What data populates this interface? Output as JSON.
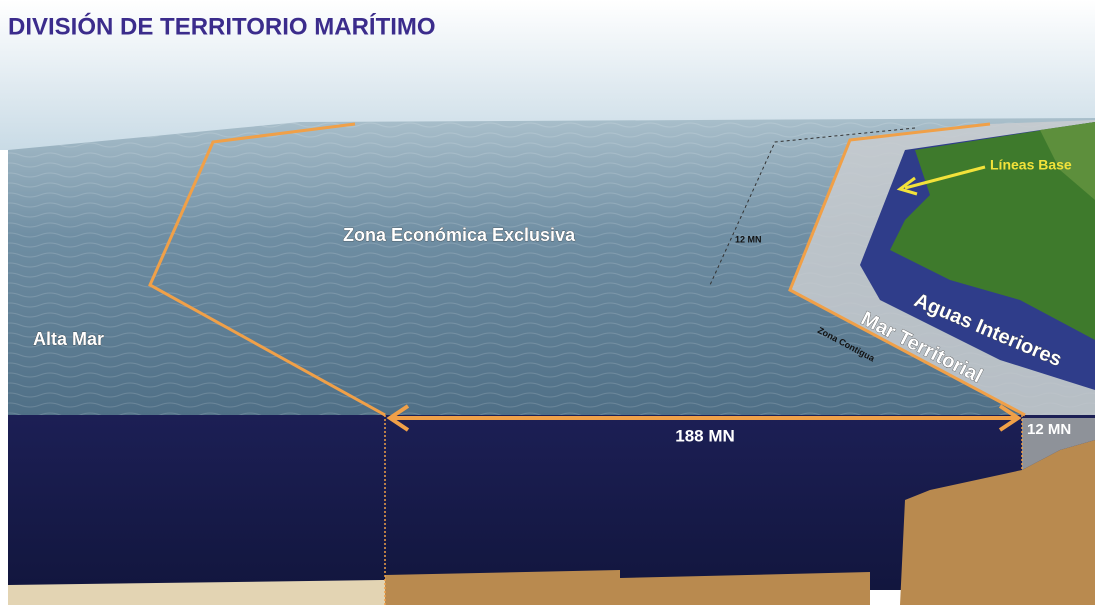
{
  "title": "DIVISIÓN DE TERRITORIO MARÍTIMO",
  "labels": {
    "zee": "Zona Económica Exclusiva",
    "alta_mar": "Alta Mar",
    "contigua_width": "12 MN",
    "zona_contigua": "Zona Contigua",
    "mar_territorial": "Mar Territorial",
    "aguas_interiores": "Aguas Interiores",
    "lineas_base": "Líneas Base",
    "zee_width": "188 MN",
    "territorial_width": "12 MN"
  }
}
